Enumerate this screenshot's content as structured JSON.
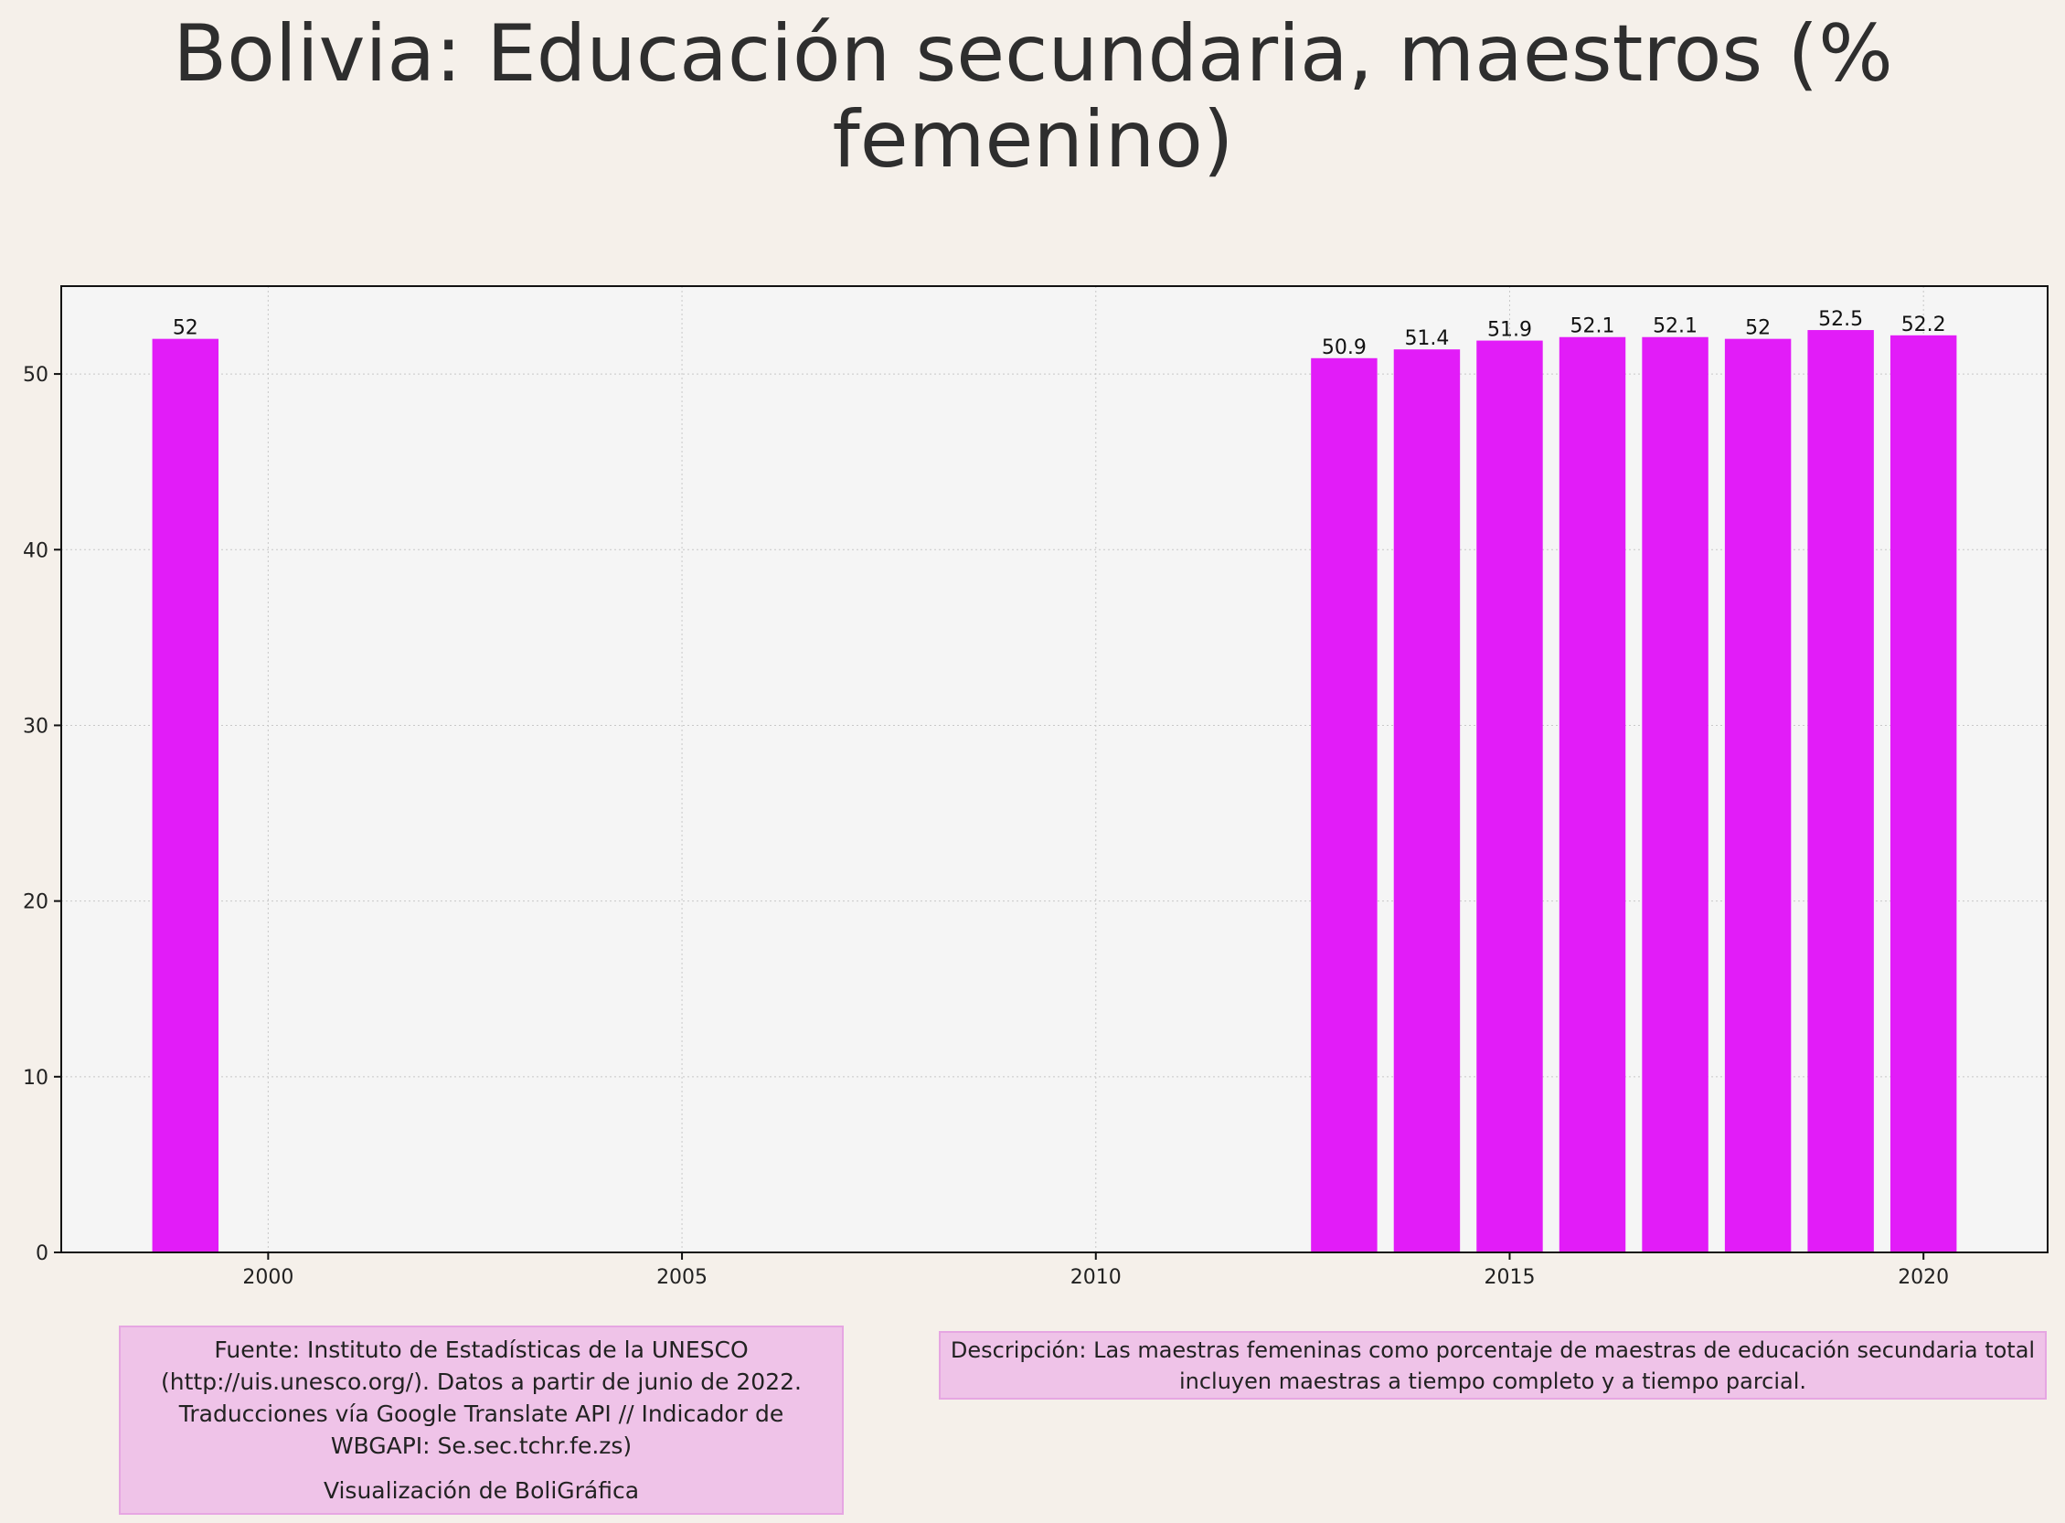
{
  "colors": {
    "bar": "#e21cf8",
    "plot_bg": "#f5f5f5",
    "page_bg": "#f5f0ea",
    "grid": "#c8c8c8"
  },
  "chart_data": {
    "type": "bar",
    "title": "Bolivia:  Educación secundaria, maestros (% femenino)",
    "xlabel": "",
    "ylabel": "",
    "x": [
      1999,
      2013,
      2014,
      2015,
      2016,
      2017,
      2018,
      2019,
      2020
    ],
    "values": [
      52,
      50.9,
      51.4,
      51.9,
      52.1,
      52.1,
      52,
      52.5,
      52.2
    ],
    "data_labels": [
      "52",
      "50.9",
      "51.4",
      "51.9",
      "52.1",
      "52.1",
      "52",
      "52.5",
      "52.2"
    ],
    "xlim": [
      1997.5,
      2021.5
    ],
    "ylim": [
      0,
      55
    ],
    "xticks": [
      2000,
      2005,
      2010,
      2015,
      2020
    ],
    "xtick_labels": [
      "2000",
      "2005",
      "2010",
      "2015",
      "2020"
    ],
    "yticks": [
      0,
      10,
      20,
      30,
      40,
      50
    ],
    "ytick_labels": [
      "0",
      "10",
      "20",
      "30",
      "40",
      "50"
    ],
    "grid": true,
    "legend": "none"
  },
  "footer": {
    "source_text": "Fuente: Instituto de Estadísticas de la UNESCO (http://uis.unesco.org/). Datos a partir de junio de 2022. Traducciones vía Google Translate API // Indicador de WBGAPI: Se.sec.tchr.fe.zs)",
    "credit": "Visualización de BoliGráfica",
    "description": "Descripción: Las maestras femeninas como porcentaje de maestras de educación secundaria total incluyen maestras a tiempo completo y a tiempo parcial."
  }
}
